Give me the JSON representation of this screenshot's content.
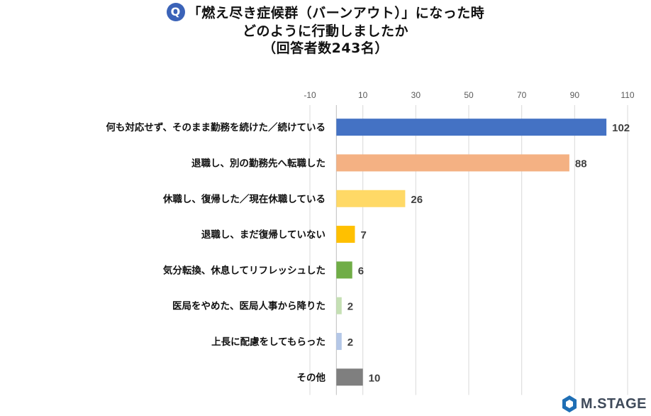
{
  "header": {
    "badge": "Q",
    "line1": "「燃え尽き症候群（バーンアウト）」になった時",
    "line2": "どのように行動しましたか",
    "line3": "（回答者数243名）"
  },
  "chart_data": {
    "type": "bar",
    "orientation": "horizontal",
    "categories": [
      "何も対応せず、そのまま勤務を続けた／続けている",
      "退職し、別の勤務先へ転職した",
      "休職し、復帰した／現在休職している",
      "退職し、まだ復帰していない",
      "気分転換、休息してリフレッシュした",
      "医局をやめた、医局人事から降りた",
      "上長に配慮をしてもらった",
      "その他"
    ],
    "values": [
      102,
      88,
      26,
      7,
      6,
      2,
      2,
      10
    ],
    "colors": [
      "#4472c4",
      "#f4b183",
      "#ffd966",
      "#ffc000",
      "#70ad47",
      "#c5e0b4",
      "#b4c7e7",
      "#7f7f7f"
    ],
    "xticks": [
      "-10",
      "10",
      "30",
      "50",
      "70",
      "90",
      "110"
    ],
    "tick_values": [
      -10,
      10,
      30,
      50,
      70,
      90,
      110
    ],
    "xlim": [
      -10,
      110
    ],
    "grid": true,
    "value_labels": true
  },
  "logo": {
    "text": "M.STAGE",
    "color": "#3f4a5a"
  }
}
